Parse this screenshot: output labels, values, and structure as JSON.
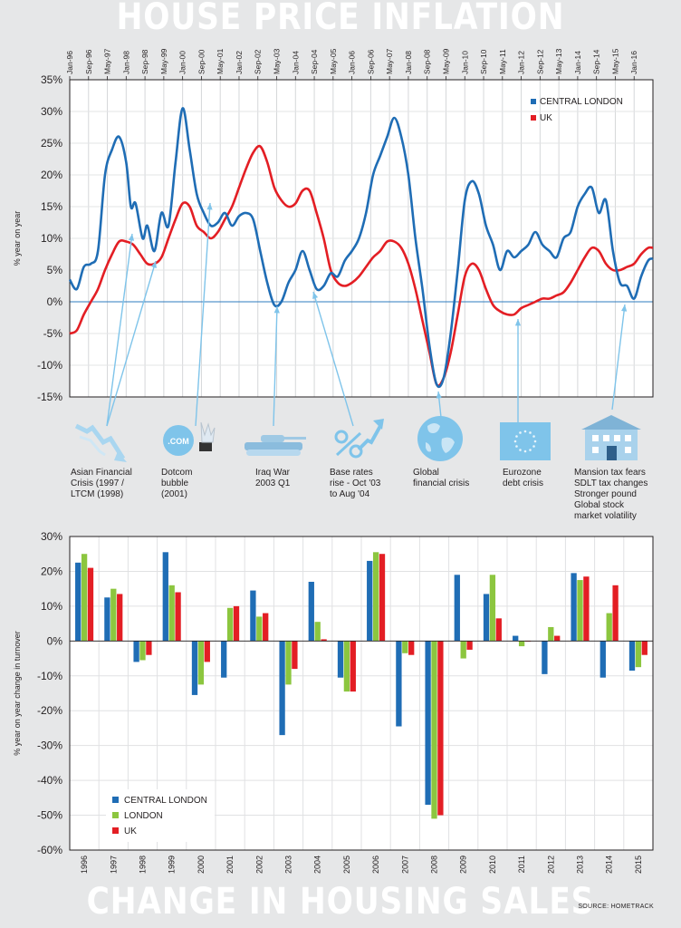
{
  "titles": {
    "top": "HOUSE PRICE INFLATION",
    "bottom": "CHANGE IN HOUSING SALES",
    "source": "SOURCE: HOMETRACK"
  },
  "colors": {
    "central_london": "#1f6db5",
    "uk": "#e31e24",
    "london": "#8cc63f",
    "event_arrow": "#7fc4ea",
    "zero_line": "#2e7bbf"
  },
  "events": [
    {
      "label": "Asian Financial\nCrisis (1997 /\nLTCM  (1998)",
      "icon": "falling-chart-icon"
    },
    {
      "label": "Dotcom\nbubble\n(2001)",
      "icon": "dotcom-bubble-icon"
    },
    {
      "label": "Iraq War\n2003 Q1",
      "icon": "tank-icon"
    },
    {
      "label": "Base rates\nrise - Oct '03\nto Aug '04",
      "icon": "percent-arrow-icon"
    },
    {
      "label": "Global\nfinancial crisis",
      "icon": "globe-icon"
    },
    {
      "label": "Eurozone\ndebt crisis",
      "icon": "eu-flag-icon"
    },
    {
      "label": "Mansion tax fears\nSDLT tax changes\nStronger pound\nGlobal stock\nmarket volatility",
      "icon": "mansion-icon"
    }
  ],
  "chart_data": [
    {
      "type": "line",
      "title": "HOUSE PRICE INFLATION",
      "ylabel": "% year on year",
      "ylim": [
        -15,
        35
      ],
      "yticks": [
        "35%",
        "30%",
        "25%",
        "20%",
        "15%",
        "10%",
        "5%",
        "0%",
        "-5%",
        "-10%",
        "-15%"
      ],
      "xlim": [
        "Jan-96",
        "Sep-16"
      ],
      "xticks": [
        "Jan-96",
        "Sep-96",
        "May-97",
        "Jan-98",
        "Sep-98",
        "May-99",
        "Jan-00",
        "Sep-00",
        "May-01",
        "Jan-02",
        "Sep-02",
        "May-03",
        "Jan-04",
        "Sep-04",
        "May-05",
        "Jan-06",
        "Sep-06",
        "May-07",
        "Jan-08",
        "Sep-08",
        "May-09",
        "Jan-10",
        "Sep-10",
        "May-11",
        "Jan-12",
        "Sep-12",
        "May-13",
        "Jan-14",
        "Sep-14",
        "May-15",
        "Jan-16"
      ],
      "legend": "top-right",
      "series": [
        {
          "name": "CENTRAL LONDON",
          "points": [
            [
              "1996-01",
              3.5
            ],
            [
              "1996-04",
              2
            ],
            [
              "1996-07",
              5.5
            ],
            [
              "1996-10",
              6
            ],
            [
              "1997-01",
              8
            ],
            [
              "1997-04",
              20
            ],
            [
              "1997-07",
              24
            ],
            [
              "1997-10",
              26
            ],
            [
              "1998-01",
              22
            ],
            [
              "1998-03",
              15
            ],
            [
              "1998-05",
              15.5
            ],
            [
              "1998-08",
              10
            ],
            [
              "1998-10",
              12
            ],
            [
              "1999-01",
              8
            ],
            [
              "1999-04",
              14
            ],
            [
              "1999-07",
              12
            ],
            [
              "1999-10",
              22
            ],
            [
              "2000-01",
              30.5
            ],
            [
              "2000-04",
              24
            ],
            [
              "2000-07",
              17
            ],
            [
              "2000-10",
              14
            ],
            [
              "2001-01",
              12
            ],
            [
              "2001-04",
              12.5
            ],
            [
              "2001-07",
              14
            ],
            [
              "2001-10",
              12
            ],
            [
              "2002-01",
              13.5
            ],
            [
              "2002-04",
              14
            ],
            [
              "2002-07",
              13
            ],
            [
              "2002-10",
              8
            ],
            [
              "2003-01",
              3
            ],
            [
              "2003-04",
              -0.5
            ],
            [
              "2003-07",
              0
            ],
            [
              "2003-10",
              3
            ],
            [
              "2004-01",
              5
            ],
            [
              "2004-04",
              8
            ],
            [
              "2004-07",
              5
            ],
            [
              "2004-10",
              2
            ],
            [
              "2005-01",
              2.5
            ],
            [
              "2005-04",
              4.5
            ],
            [
              "2005-07",
              4
            ],
            [
              "2005-10",
              6.5
            ],
            [
              "2006-01",
              8
            ],
            [
              "2006-04",
              10
            ],
            [
              "2006-07",
              14
            ],
            [
              "2006-10",
              20
            ],
            [
              "2007-01",
              23
            ],
            [
              "2007-04",
              26
            ],
            [
              "2007-07",
              29
            ],
            [
              "2007-10",
              26
            ],
            [
              "2008-01",
              20
            ],
            [
              "2008-04",
              10
            ],
            [
              "2008-07",
              2
            ],
            [
              "2008-10",
              -7
            ],
            [
              "2009-01",
              -13
            ],
            [
              "2009-04",
              -12
            ],
            [
              "2009-07",
              -5
            ],
            [
              "2009-10",
              5
            ],
            [
              "2010-01",
              16
            ],
            [
              "2010-04",
              19
            ],
            [
              "2010-07",
              17
            ],
            [
              "2010-10",
              12
            ],
            [
              "2011-01",
              9
            ],
            [
              "2011-04",
              5
            ],
            [
              "2011-07",
              8
            ],
            [
              "2011-10",
              7
            ],
            [
              "2012-01",
              8
            ],
            [
              "2012-04",
              9
            ],
            [
              "2012-07",
              11
            ],
            [
              "2012-10",
              9
            ],
            [
              "2013-01",
              8
            ],
            [
              "2013-04",
              7
            ],
            [
              "2013-07",
              10
            ],
            [
              "2013-10",
              11
            ],
            [
              "2014-01",
              15
            ],
            [
              "2014-04",
              17
            ],
            [
              "2014-07",
              18
            ],
            [
              "2014-10",
              14
            ],
            [
              "2015-01",
              16
            ],
            [
              "2015-04",
              8
            ],
            [
              "2015-07",
              3
            ],
            [
              "2015-10",
              2.5
            ],
            [
              "2016-01",
              0.5
            ],
            [
              "2016-04",
              4
            ],
            [
              "2016-07",
              6.5
            ],
            [
              "2016-09",
              6.8
            ]
          ]
        },
        {
          "name": "UK",
          "points": [
            [
              "1996-01",
              -5
            ],
            [
              "1996-04",
              -4.5
            ],
            [
              "1996-07",
              -2
            ],
            [
              "1996-10",
              0
            ],
            [
              "1997-01",
              2
            ],
            [
              "1997-04",
              5
            ],
            [
              "1997-07",
              7.5
            ],
            [
              "1997-10",
              9.5
            ],
            [
              "1998-01",
              9.5
            ],
            [
              "1998-04",
              9
            ],
            [
              "1998-07",
              7.5
            ],
            [
              "1998-10",
              6
            ],
            [
              "1999-01",
              6
            ],
            [
              "1999-04",
              7
            ],
            [
              "1999-07",
              10
            ],
            [
              "1999-10",
              13
            ],
            [
              "2000-01",
              15.5
            ],
            [
              "2000-04",
              15
            ],
            [
              "2000-07",
              12
            ],
            [
              "2000-10",
              11
            ],
            [
              "2001-01",
              10
            ],
            [
              "2001-04",
              11
            ],
            [
              "2001-07",
              13
            ],
            [
              "2001-10",
              15
            ],
            [
              "2002-01",
              18
            ],
            [
              "2002-04",
              21
            ],
            [
              "2002-07",
              23.5
            ],
            [
              "2002-10",
              24.5
            ],
            [
              "2003-01",
              22
            ],
            [
              "2003-04",
              18
            ],
            [
              "2003-07",
              16
            ],
            [
              "2003-10",
              15
            ],
            [
              "2004-01",
              15.5
            ],
            [
              "2004-04",
              17.5
            ],
            [
              "2004-07",
              17.5
            ],
            [
              "2004-10",
              14
            ],
            [
              "2005-01",
              10
            ],
            [
              "2005-04",
              5
            ],
            [
              "2005-07",
              3
            ],
            [
              "2005-10",
              2.5
            ],
            [
              "2006-01",
              3
            ],
            [
              "2006-04",
              4
            ],
            [
              "2006-07",
              5.5
            ],
            [
              "2006-10",
              7
            ],
            [
              "2007-01",
              8
            ],
            [
              "2007-04",
              9.5
            ],
            [
              "2007-07",
              9.5
            ],
            [
              "2007-10",
              8.5
            ],
            [
              "2008-01",
              6
            ],
            [
              "2008-04",
              2
            ],
            [
              "2008-07",
              -3
            ],
            [
              "2008-10",
              -8
            ],
            [
              "2009-01",
              -13
            ],
            [
              "2009-04",
              -12
            ],
            [
              "2009-07",
              -8
            ],
            [
              "2009-10",
              -2
            ],
            [
              "2010-01",
              4
            ],
            [
              "2010-04",
              6
            ],
            [
              "2010-07",
              5
            ],
            [
              "2010-10",
              2
            ],
            [
              "2011-01",
              -0.5
            ],
            [
              "2011-04",
              -1.5
            ],
            [
              "2011-07",
              -2
            ],
            [
              "2011-10",
              -2
            ],
            [
              "2012-01",
              -1
            ],
            [
              "2012-04",
              -0.5
            ],
            [
              "2012-07",
              0
            ],
            [
              "2012-10",
              0.5
            ],
            [
              "2013-01",
              0.5
            ],
            [
              "2013-04",
              1
            ],
            [
              "2013-07",
              1.5
            ],
            [
              "2013-10",
              3
            ],
            [
              "2014-01",
              5
            ],
            [
              "2014-04",
              7
            ],
            [
              "2014-07",
              8.5
            ],
            [
              "2014-10",
              8
            ],
            [
              "2015-01",
              6
            ],
            [
              "2015-04",
              5
            ],
            [
              "2015-07",
              5
            ],
            [
              "2015-10",
              5.5
            ],
            [
              "2016-01",
              6
            ],
            [
              "2016-04",
              7.5
            ],
            [
              "2016-07",
              8.5
            ],
            [
              "2016-09",
              8.5
            ]
          ]
        }
      ]
    },
    {
      "type": "bar",
      "title": "CHANGE IN HOUSING SALES",
      "ylabel": "% year on year change in turnover",
      "ylim": [
        -60,
        30
      ],
      "yticks": [
        "30%",
        "20%",
        "10%",
        "0%",
        "-10%",
        "-20%",
        "-30%",
        "-40%",
        "-50%",
        "-60%"
      ],
      "categories": [
        "1996",
        "1997",
        "1998",
        "1999",
        "2000",
        "2001",
        "2002",
        "2003",
        "2004",
        "2005",
        "2006",
        "2007",
        "2008",
        "2009",
        "2010",
        "2011",
        "2012",
        "2013",
        "2014",
        "2015"
      ],
      "legend": "bottom-left",
      "series": [
        {
          "name": "CENTRAL LONDON",
          "values": [
            22.5,
            12.5,
            -6,
            25.5,
            -15.5,
            -10.5,
            14.5,
            -27,
            17,
            -10.5,
            23,
            -24.5,
            -47,
            19,
            13.5,
            1.5,
            -9.5,
            19.5,
            -10.5,
            -8.5
          ]
        },
        {
          "name": "LONDON",
          "values": [
            25,
            15,
            -5.5,
            16,
            -12.5,
            9.5,
            7,
            -12.5,
            5.5,
            -14.5,
            25.5,
            -3.5,
            -51,
            -5,
            19,
            -1.5,
            4,
            17.5,
            8,
            -7.5
          ]
        },
        {
          "name": "UK",
          "values": [
            21,
            13.5,
            -4,
            14,
            -6,
            10,
            8,
            -8,
            0.5,
            -14.5,
            25,
            -4,
            -50,
            -2.5,
            6.5,
            0,
            1.5,
            18.5,
            16,
            -4
          ]
        }
      ]
    }
  ]
}
